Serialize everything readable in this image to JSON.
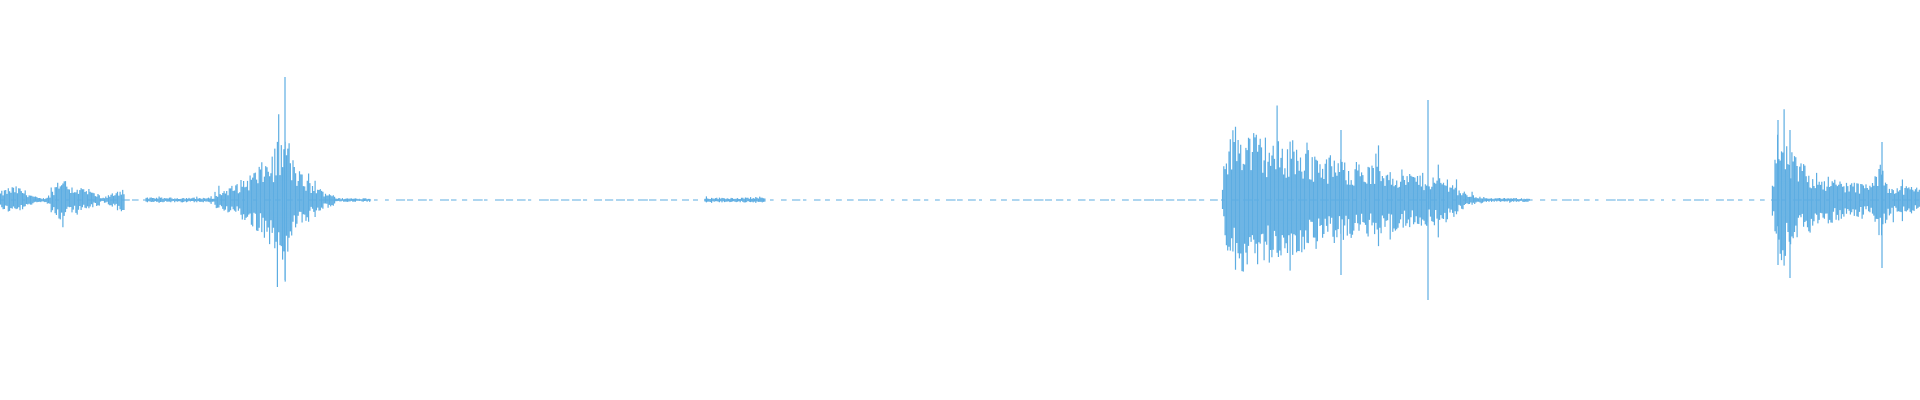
{
  "waveform": {
    "color": "#5dade2",
    "background": "#ffffff",
    "icon": "audio-waveform"
  }
}
